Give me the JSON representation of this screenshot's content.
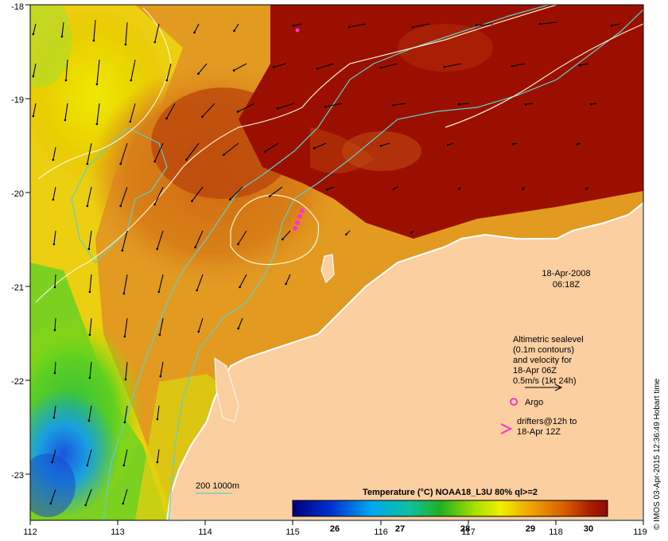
{
  "map": {
    "lon_ticks": [
      "112",
      "113",
      "114",
      "115",
      "116",
      "117",
      "118",
      "119"
    ],
    "lat_ticks": [
      "-18",
      "-19",
      "-20",
      "-21",
      "-22",
      "-23"
    ],
    "date_line1": "18-Apr-2008",
    "date_line2": "06:18Z",
    "legend_lines": [
      "Altimetric sealevel",
      "(0.1m contours)",
      "and velocity for",
      "18-Apr 06Z",
      "0.5m/s (1kt 24h)"
    ],
    "argo_label": "Argo",
    "drifters_line1": "drifters@12h to",
    "drifters_line2": "18-Apr 12Z",
    "bathy_label": "200  1000m",
    "colorbar_title": "Temperature (°C) NOAA18_L3U 80% ql>=2",
    "colorbar_ticks": [
      "26",
      "27",
      "28",
      "29",
      "30"
    ],
    "credit": "© IMOS 03-Apr-2015 12:36:49 Hobart time"
  },
  "colors": {
    "land": "#fbcfa0",
    "warm": "#9b0f00",
    "argo": "#ff33cc",
    "bathy": "#5fd0c8",
    "contour": "#fffbd8"
  },
  "chart_data": {
    "type": "heatmap",
    "title": "Temperature (°C) NOAA18_L3U 80% ql>=2",
    "x_range": [
      112,
      119
    ],
    "y_range": [
      -23.5,
      -18
    ],
    "colorbar_range": [
      25.5,
      30.3
    ]
  }
}
